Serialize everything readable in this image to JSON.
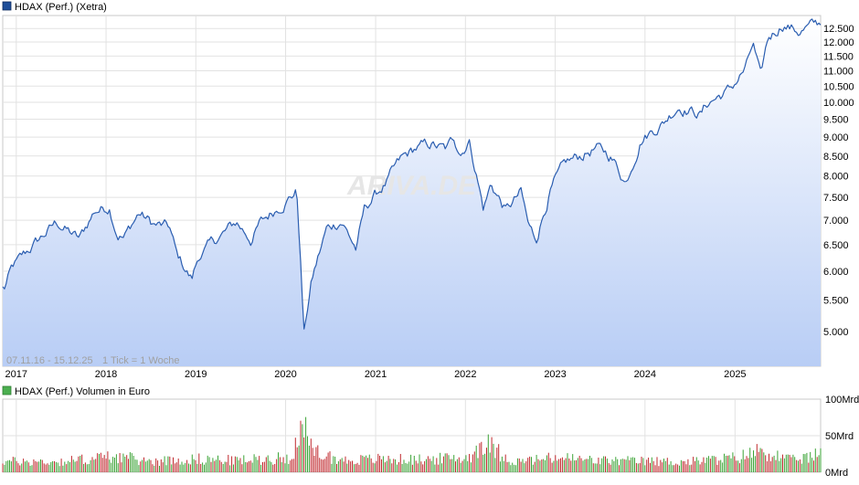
{
  "chart_data": [
    {
      "type": "area",
      "series": [
        {
          "name": "HDAX (Perf.) (Xetra)",
          "x": [
            "2016-11",
            "2016-12",
            "2017-01",
            "2017-03",
            "2017-06",
            "2017-09",
            "2017-11",
            "2018-01",
            "2018-02",
            "2018-03",
            "2018-05",
            "2018-07",
            "2018-09",
            "2018-10",
            "2018-12",
            "2019-01",
            "2019-03",
            "2019-06",
            "2019-08",
            "2019-09",
            "2019-12",
            "2020-02",
            "2020-03",
            "2020-04",
            "2020-06",
            "2020-08",
            "2020-10",
            "2020-11",
            "2020-12",
            "2021-02",
            "2021-04",
            "2021-06",
            "2021-08",
            "2021-10",
            "2021-11",
            "2021-12",
            "2022-01",
            "2022-03",
            "2022-04",
            "2022-06",
            "2022-08",
            "2022-09",
            "2022-10",
            "2022-12",
            "2023-02",
            "2023-03",
            "2023-06",
            "2023-08",
            "2023-10",
            "2023-12",
            "2024-03",
            "2024-05",
            "2024-08",
            "2024-09",
            "2024-12",
            "2025-02",
            "2025-03",
            "2025-04",
            "2025-05",
            "2025-07",
            "2025-09",
            "2025-11",
            "2025-12"
          ],
          "values": [
            5700,
            6050,
            6200,
            6500,
            6950,
            6600,
            7200,
            7300,
            6750,
            6650,
            7150,
            6900,
            6850,
            6300,
            5850,
            6300,
            6550,
            6950,
            6600,
            6900,
            7350,
            7650,
            4950,
            5800,
            6800,
            7000,
            6400,
            7200,
            7450,
            7850,
            8400,
            8700,
            8800,
            8650,
            8950,
            8600,
            8950,
            7250,
            7800,
            7200,
            7600,
            6850,
            6600,
            7700,
            8300,
            8400,
            8700,
            8500,
            7850,
            8950,
            9400,
            9900,
            9650,
            10000,
            10400,
            11100,
            11900,
            10700,
            12100,
            12700,
            12400,
            12600,
            12700
          ]
        }
      ],
      "xlabel": "",
      "ylabel": "",
      "x_tick_labels": [
        "2017",
        "2018",
        "2019",
        "2020",
        "2021",
        "2022",
        "2023",
        "2024",
        "2025"
      ],
      "y_tick_labels": [
        "5.000",
        "5.500",
        "6.000",
        "6.500",
        "7.000",
        "7.500",
        "8.000",
        "8.500",
        "9.000",
        "9.500",
        "10.000",
        "10.500",
        "11.000",
        "11.500",
        "12.000",
        "12.500"
      ],
      "y_ticks": [
        5000,
        5500,
        6000,
        6500,
        7000,
        7500,
        8000,
        8500,
        9000,
        9500,
        10000,
        10500,
        11000,
        11500,
        12000,
        12500
      ],
      "ylim": [
        4500,
        13000
      ],
      "y_scale": "log",
      "grid": true,
      "legend": "top-left",
      "range_label": "07.11.16 - 15.12.25",
      "tick_note": "1 Tick = 1 Woche",
      "watermark": "ARIVA.DE",
      "line_color": "#2a5db0",
      "fill_top_color": "#ffffff",
      "fill_bottom_color": "#b8cdf5",
      "marker_color": "#1f4e99"
    },
    {
      "type": "bar",
      "series": [
        {
          "name": "HDAX (Perf.) Volumen in Euro",
          "unit": "Mrd",
          "x": [
            "2016-11",
            "2017-06",
            "2018-02",
            "2018-06",
            "2019-01",
            "2019-06",
            "2020-01",
            "2020-03",
            "2020-04",
            "2020-08",
            "2021-01",
            "2021-06",
            "2022-01",
            "2022-03",
            "2022-07",
            "2023-01",
            "2023-06",
            "2024-01",
            "2024-06",
            "2025-01",
            "2025-04",
            "2025-08",
            "2025-12"
          ],
          "values": [
            15,
            14,
            22,
            15,
            18,
            16,
            20,
            60,
            30,
            16,
            18,
            17,
            20,
            42,
            14,
            20,
            16,
            15,
            14,
            20,
            30,
            16,
            24
          ]
        }
      ],
      "y_tick_labels": [
        "100Mrd",
        "50Mrd",
        "0Mrd"
      ],
      "y_ticks": [
        100,
        50,
        0
      ],
      "ylim": [
        0,
        100
      ],
      "grid": true,
      "legend": "top-left",
      "up_color": "#3aa335",
      "down_color": "#c0282d",
      "marker_color": "#4caf50"
    }
  ]
}
